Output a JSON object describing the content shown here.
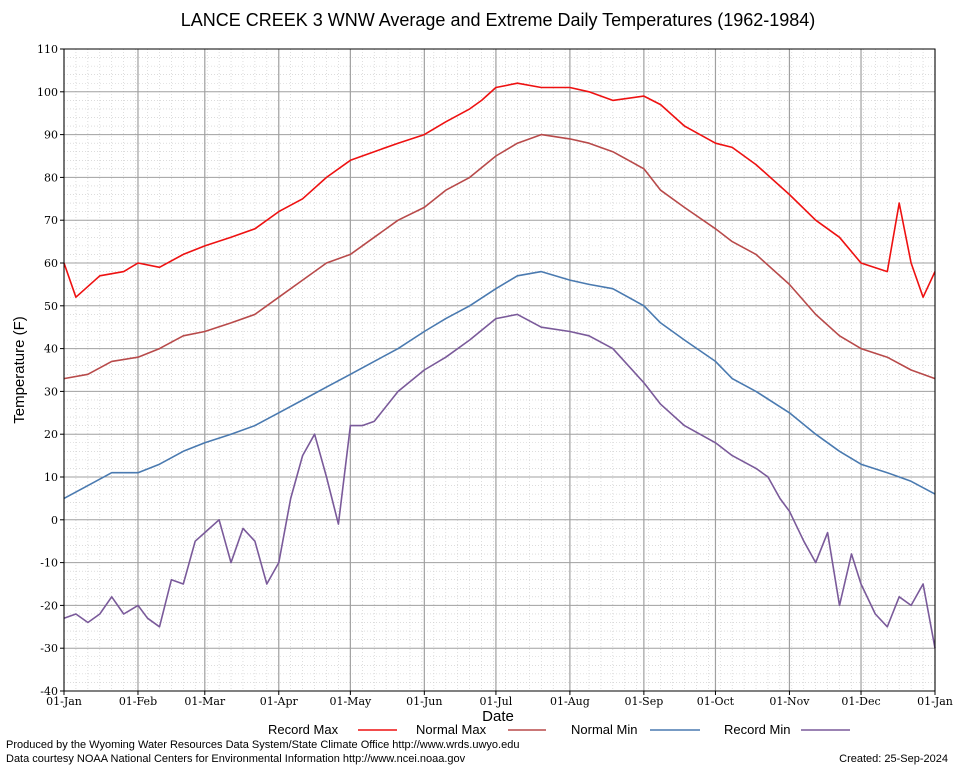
{
  "chart_data": {
    "type": "line",
    "title": "LANCE CREEK 3 WNW Average and Extreme Daily Temperatures (1962-1984)",
    "xlabel": "Date",
    "ylabel": "Temperature (F)",
    "ylim": [
      -40,
      110
    ],
    "yticks": [
      -40,
      -30,
      -20,
      -10,
      0,
      10,
      20,
      30,
      40,
      50,
      60,
      70,
      80,
      90,
      100,
      110
    ],
    "xlim_days": [
      0,
      365
    ],
    "xticks": [
      {
        "label": "01-Jan",
        "day": 0
      },
      {
        "label": "01-Feb",
        "day": 31
      },
      {
        "label": "01-Mar",
        "day": 59
      },
      {
        "label": "01-Apr",
        "day": 90
      },
      {
        "label": "01-May",
        "day": 120
      },
      {
        "label": "01-Jun",
        "day": 151
      },
      {
        "label": "01-Jul",
        "day": 181
      },
      {
        "label": "01-Aug",
        "day": 212
      },
      {
        "label": "01-Sep",
        "day": 243
      },
      {
        "label": "01-Oct",
        "day": 273
      },
      {
        "label": "01-Nov",
        "day": 304
      },
      {
        "label": "01-Dec",
        "day": 334
      },
      {
        "label": "01-Jan",
        "day": 365
      }
    ],
    "grid": true,
    "legend_position": "bottom",
    "series": [
      {
        "name": "Record Max",
        "color": "#ee1111",
        "x": [
          0,
          5,
          15,
          25,
          31,
          40,
          50,
          59,
          70,
          80,
          90,
          100,
          110,
          120,
          130,
          140,
          151,
          160,
          170,
          175,
          181,
          190,
          200,
          212,
          220,
          230,
          243,
          250,
          260,
          273,
          280,
          290,
          304,
          315,
          325,
          334,
          345,
          350,
          355,
          360,
          365
        ],
        "values": [
          60,
          52,
          57,
          58,
          60,
          59,
          62,
          64,
          66,
          68,
          72,
          75,
          80,
          84,
          86,
          88,
          90,
          93,
          96,
          98,
          101,
          102,
          101,
          101,
          100,
          98,
          99,
          97,
          92,
          88,
          87,
          83,
          76,
          70,
          66,
          60,
          58,
          74,
          60,
          52,
          58
        ]
      },
      {
        "name": "Normal Max",
        "color": "#b84a4a",
        "x": [
          0,
          10,
          20,
          31,
          40,
          50,
          59,
          70,
          80,
          90,
          100,
          110,
          120,
          130,
          140,
          151,
          160,
          170,
          181,
          190,
          200,
          212,
          220,
          230,
          243,
          250,
          260,
          273,
          280,
          290,
          304,
          315,
          325,
          334,
          345,
          355,
          365
        ],
        "values": [
          33,
          34,
          37,
          38,
          40,
          43,
          44,
          46,
          48,
          52,
          56,
          60,
          62,
          66,
          70,
          73,
          77,
          80,
          85,
          88,
          90,
          89,
          88,
          86,
          82,
          77,
          73,
          68,
          65,
          62,
          55,
          48,
          43,
          40,
          38,
          35,
          33
        ]
      },
      {
        "name": "Normal Min",
        "color": "#4a7ab0",
        "x": [
          0,
          10,
          20,
          31,
          40,
          50,
          59,
          70,
          80,
          90,
          100,
          110,
          120,
          130,
          140,
          151,
          160,
          170,
          181,
          190,
          200,
          212,
          220,
          230,
          243,
          250,
          260,
          273,
          280,
          290,
          304,
          315,
          325,
          334,
          345,
          355,
          365
        ],
        "values": [
          5,
          8,
          11,
          11,
          13,
          16,
          18,
          20,
          22,
          25,
          28,
          31,
          34,
          37,
          40,
          44,
          47,
          50,
          54,
          57,
          58,
          56,
          55,
          54,
          50,
          46,
          42,
          37,
          33,
          30,
          25,
          20,
          16,
          13,
          11,
          9,
          6
        ]
      },
      {
        "name": "Record Min",
        "color": "#7a5a9a",
        "x": [
          0,
          5,
          10,
          15,
          20,
          25,
          31,
          35,
          40,
          45,
          50,
          55,
          59,
          65,
          70,
          75,
          80,
          85,
          90,
          95,
          100,
          105,
          110,
          115,
          120,
          125,
          130,
          140,
          151,
          160,
          170,
          181,
          190,
          200,
          212,
          220,
          230,
          243,
          250,
          260,
          273,
          280,
          290,
          295,
          300,
          304,
          310,
          315,
          320,
          325,
          330,
          334,
          340,
          345,
          350,
          355,
          360,
          365
        ],
        "values": [
          -23,
          -22,
          -24,
          -22,
          -18,
          -22,
          -20,
          -23,
          -25,
          -14,
          -15,
          -5,
          -3,
          0,
          -10,
          -2,
          -5,
          -15,
          -10,
          5,
          15,
          20,
          10,
          -1,
          22,
          22,
          23,
          30,
          35,
          38,
          42,
          47,
          48,
          45,
          44,
          43,
          40,
          32,
          27,
          22,
          18,
          15,
          12,
          10,
          5,
          2,
          -5,
          -10,
          -3,
          -20,
          -8,
          -15,
          -22,
          -25,
          -18,
          -20,
          -15,
          -30
        ]
      }
    ]
  },
  "footer": {
    "produced_by": "Produced by the Wyoming Water Resources Data System/State Climate Office http://www.wrds.uwyo.edu",
    "courtesy": "Data courtesy NOAA National Centers for Environmental Information http://www.ncei.noaa.gov",
    "created": "Created:  25-Sep-2024"
  }
}
